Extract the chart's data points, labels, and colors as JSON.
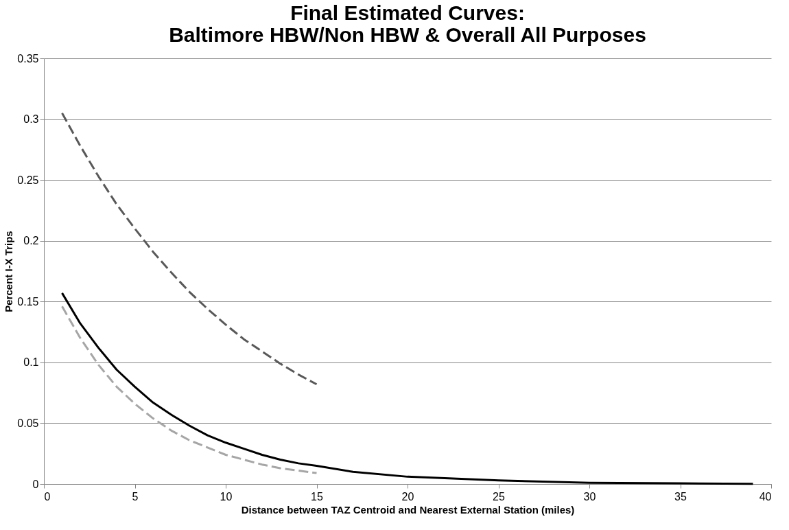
{
  "chart_data": {
    "type": "line",
    "title": [
      "Final Estimated Curves:",
      "Baltimore HBW/Non HBW & Overall All Purposes"
    ],
    "xlabel": "Distance between TAZ Centroid and Nearest External Station (miles)",
    "ylabel": "Percent I-X Trips",
    "xlim": [
      0,
      40
    ],
    "xticks": [
      0,
      5,
      10,
      15,
      20,
      25,
      30,
      35,
      40
    ],
    "ylim": [
      0,
      0.35
    ],
    "yticks": [
      0,
      0.05,
      0.1,
      0.15,
      0.2,
      0.25,
      0.3,
      0.35
    ],
    "grid": "y",
    "marker": "none",
    "series": [
      {
        "color": "#595959",
        "line_style": "dashed",
        "x": [
          1,
          2,
          3,
          4,
          5,
          6,
          7,
          8,
          9,
          10,
          11,
          12,
          13,
          14,
          15
        ],
        "values": [
          0.305,
          0.278,
          0.253,
          0.23,
          0.21,
          0.191,
          0.174,
          0.158,
          0.144,
          0.131,
          0.119,
          0.109,
          0.099,
          0.09,
          0.082
        ]
      },
      {
        "color": "#a6a6a6",
        "line_style": "dashed",
        "x": [
          1,
          2,
          3,
          4,
          5,
          6,
          7,
          8,
          9,
          10,
          11,
          12,
          13,
          14,
          15
        ],
        "values": [
          0.146,
          0.12,
          0.098,
          0.08,
          0.066,
          0.054,
          0.044,
          0.036,
          0.03,
          0.024,
          0.02,
          0.016,
          0.013,
          0.011,
          0.009
        ]
      },
      {
        "color": "#000000",
        "line_style": "solid",
        "x": [
          1,
          2,
          3,
          4,
          5,
          6,
          7,
          8,
          9,
          10,
          11,
          12,
          13,
          14,
          15,
          17,
          20,
          25,
          30,
          35,
          39
        ],
        "values": [
          0.157,
          0.132,
          0.112,
          0.094,
          0.08,
          0.067,
          0.057,
          0.048,
          0.04,
          0.034,
          0.029,
          0.024,
          0.02,
          0.017,
          0.015,
          0.01,
          0.006,
          0.003,
          0.001,
          0.0005,
          0.0002
        ]
      }
    ]
  }
}
